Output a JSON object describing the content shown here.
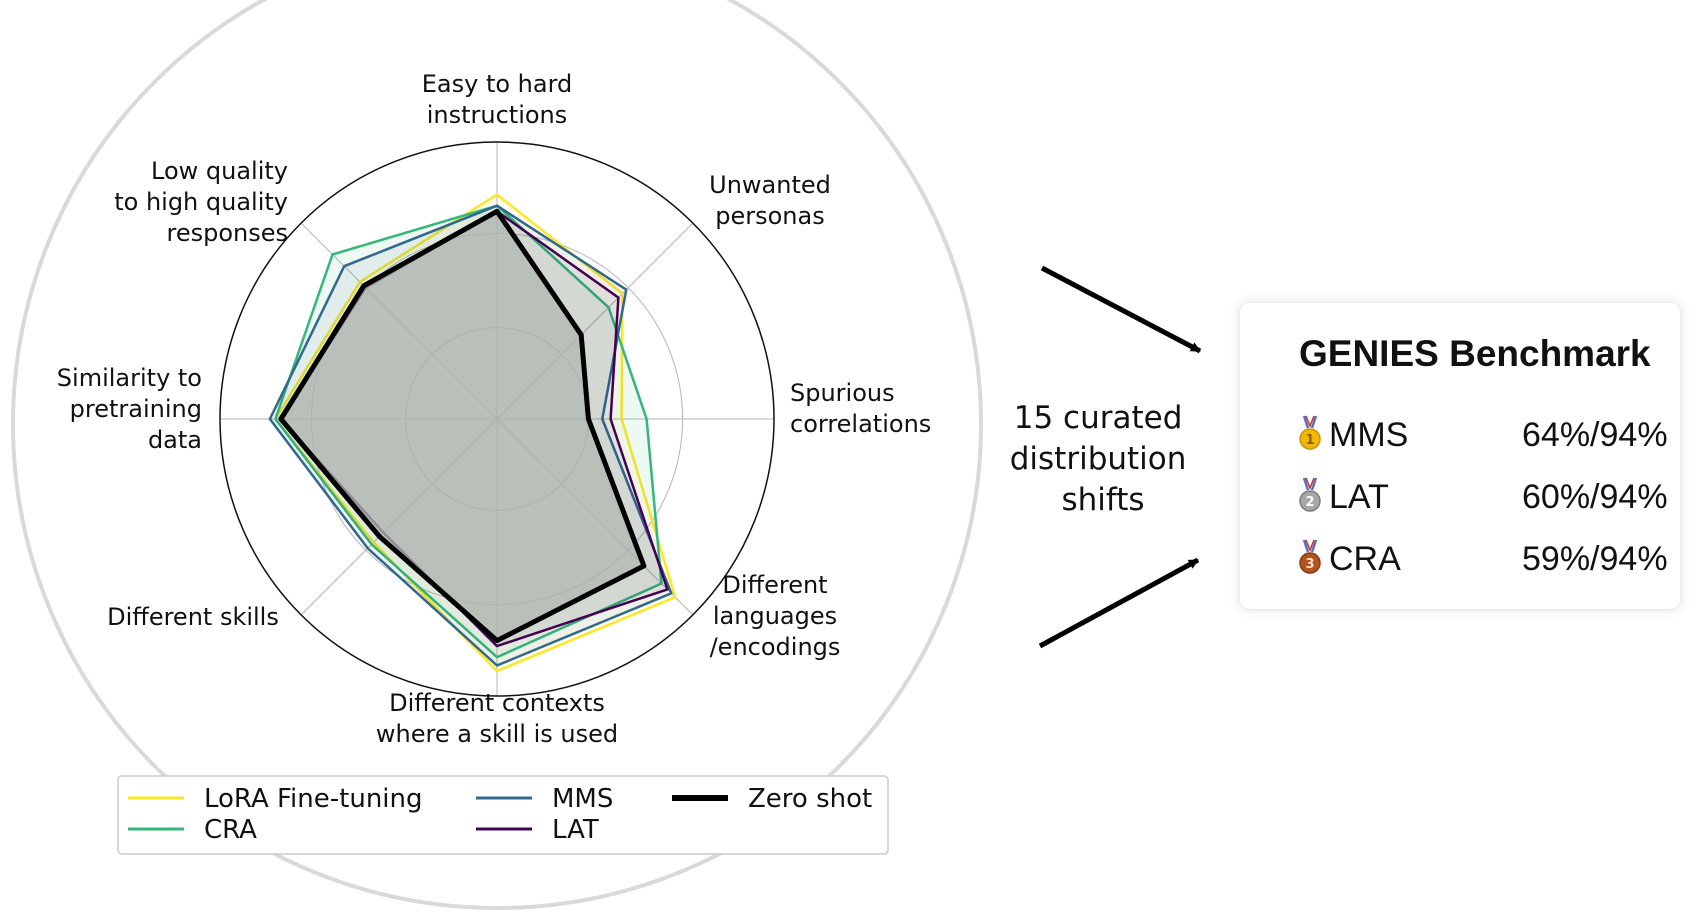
{
  "chart_data": {
    "type": "radar",
    "r_range": [
      0,
      1
    ],
    "grid": true,
    "legend_position": "bottom",
    "axes": [
      "Easy to hard\ninstructions",
      "Unwanted\npersonas",
      "Spurious\ncorrelations",
      "Different\nlanguages\n/encodings",
      "Different contexts\nwhere a skill is used",
      "Different skills",
      "Similarity to\npretraining\ndata",
      "Low quality\nto high quality\nresponses"
    ],
    "series": [
      {
        "name": "LoRA Fine-tuning",
        "color": "#fde725",
        "values": [
          0.81,
          0.64,
          0.45,
          0.91,
          0.91,
          0.63,
          0.8,
          0.7
        ]
      },
      {
        "name": "CRA",
        "color": "#35b779",
        "values": [
          0.77,
          0.57,
          0.54,
          0.84,
          0.86,
          0.64,
          0.8,
          0.84
        ]
      },
      {
        "name": "MMS",
        "color": "#31688e",
        "values": [
          0.77,
          0.66,
          0.38,
          0.89,
          0.89,
          0.66,
          0.82,
          0.78
        ]
      },
      {
        "name": "LAT",
        "color": "#440154",
        "values": [
          0.75,
          0.62,
          0.41,
          0.87,
          0.82,
          0.58,
          0.78,
          0.67
        ]
      },
      {
        "name": "Zero shot",
        "color": "#000000",
        "values": [
          0.75,
          0.43,
          0.33,
          0.75,
          0.8,
          0.6,
          0.78,
          0.68
        ]
      }
    ]
  },
  "middle_note": {
    "lines": [
      "15 curated",
      "distribution",
      "shifts"
    ]
  },
  "benchmark": {
    "title": "GENIES Benchmark",
    "rows": [
      {
        "rank": "1",
        "medal": "gold-medal-icon",
        "name": "MMS",
        "score": "64%/94%"
      },
      {
        "rank": "2",
        "medal": "silver-medal-icon",
        "name": "LAT",
        "score": "60%/94%"
      },
      {
        "rank": "3",
        "medal": "bronze-medal-icon",
        "name": "CRA",
        "score": "59%/94%"
      }
    ]
  },
  "colors": {
    "zero_shot_fill": "#b0b8b0",
    "grid": "#b5b5b5",
    "outer_ring": "#d9d9d9"
  }
}
